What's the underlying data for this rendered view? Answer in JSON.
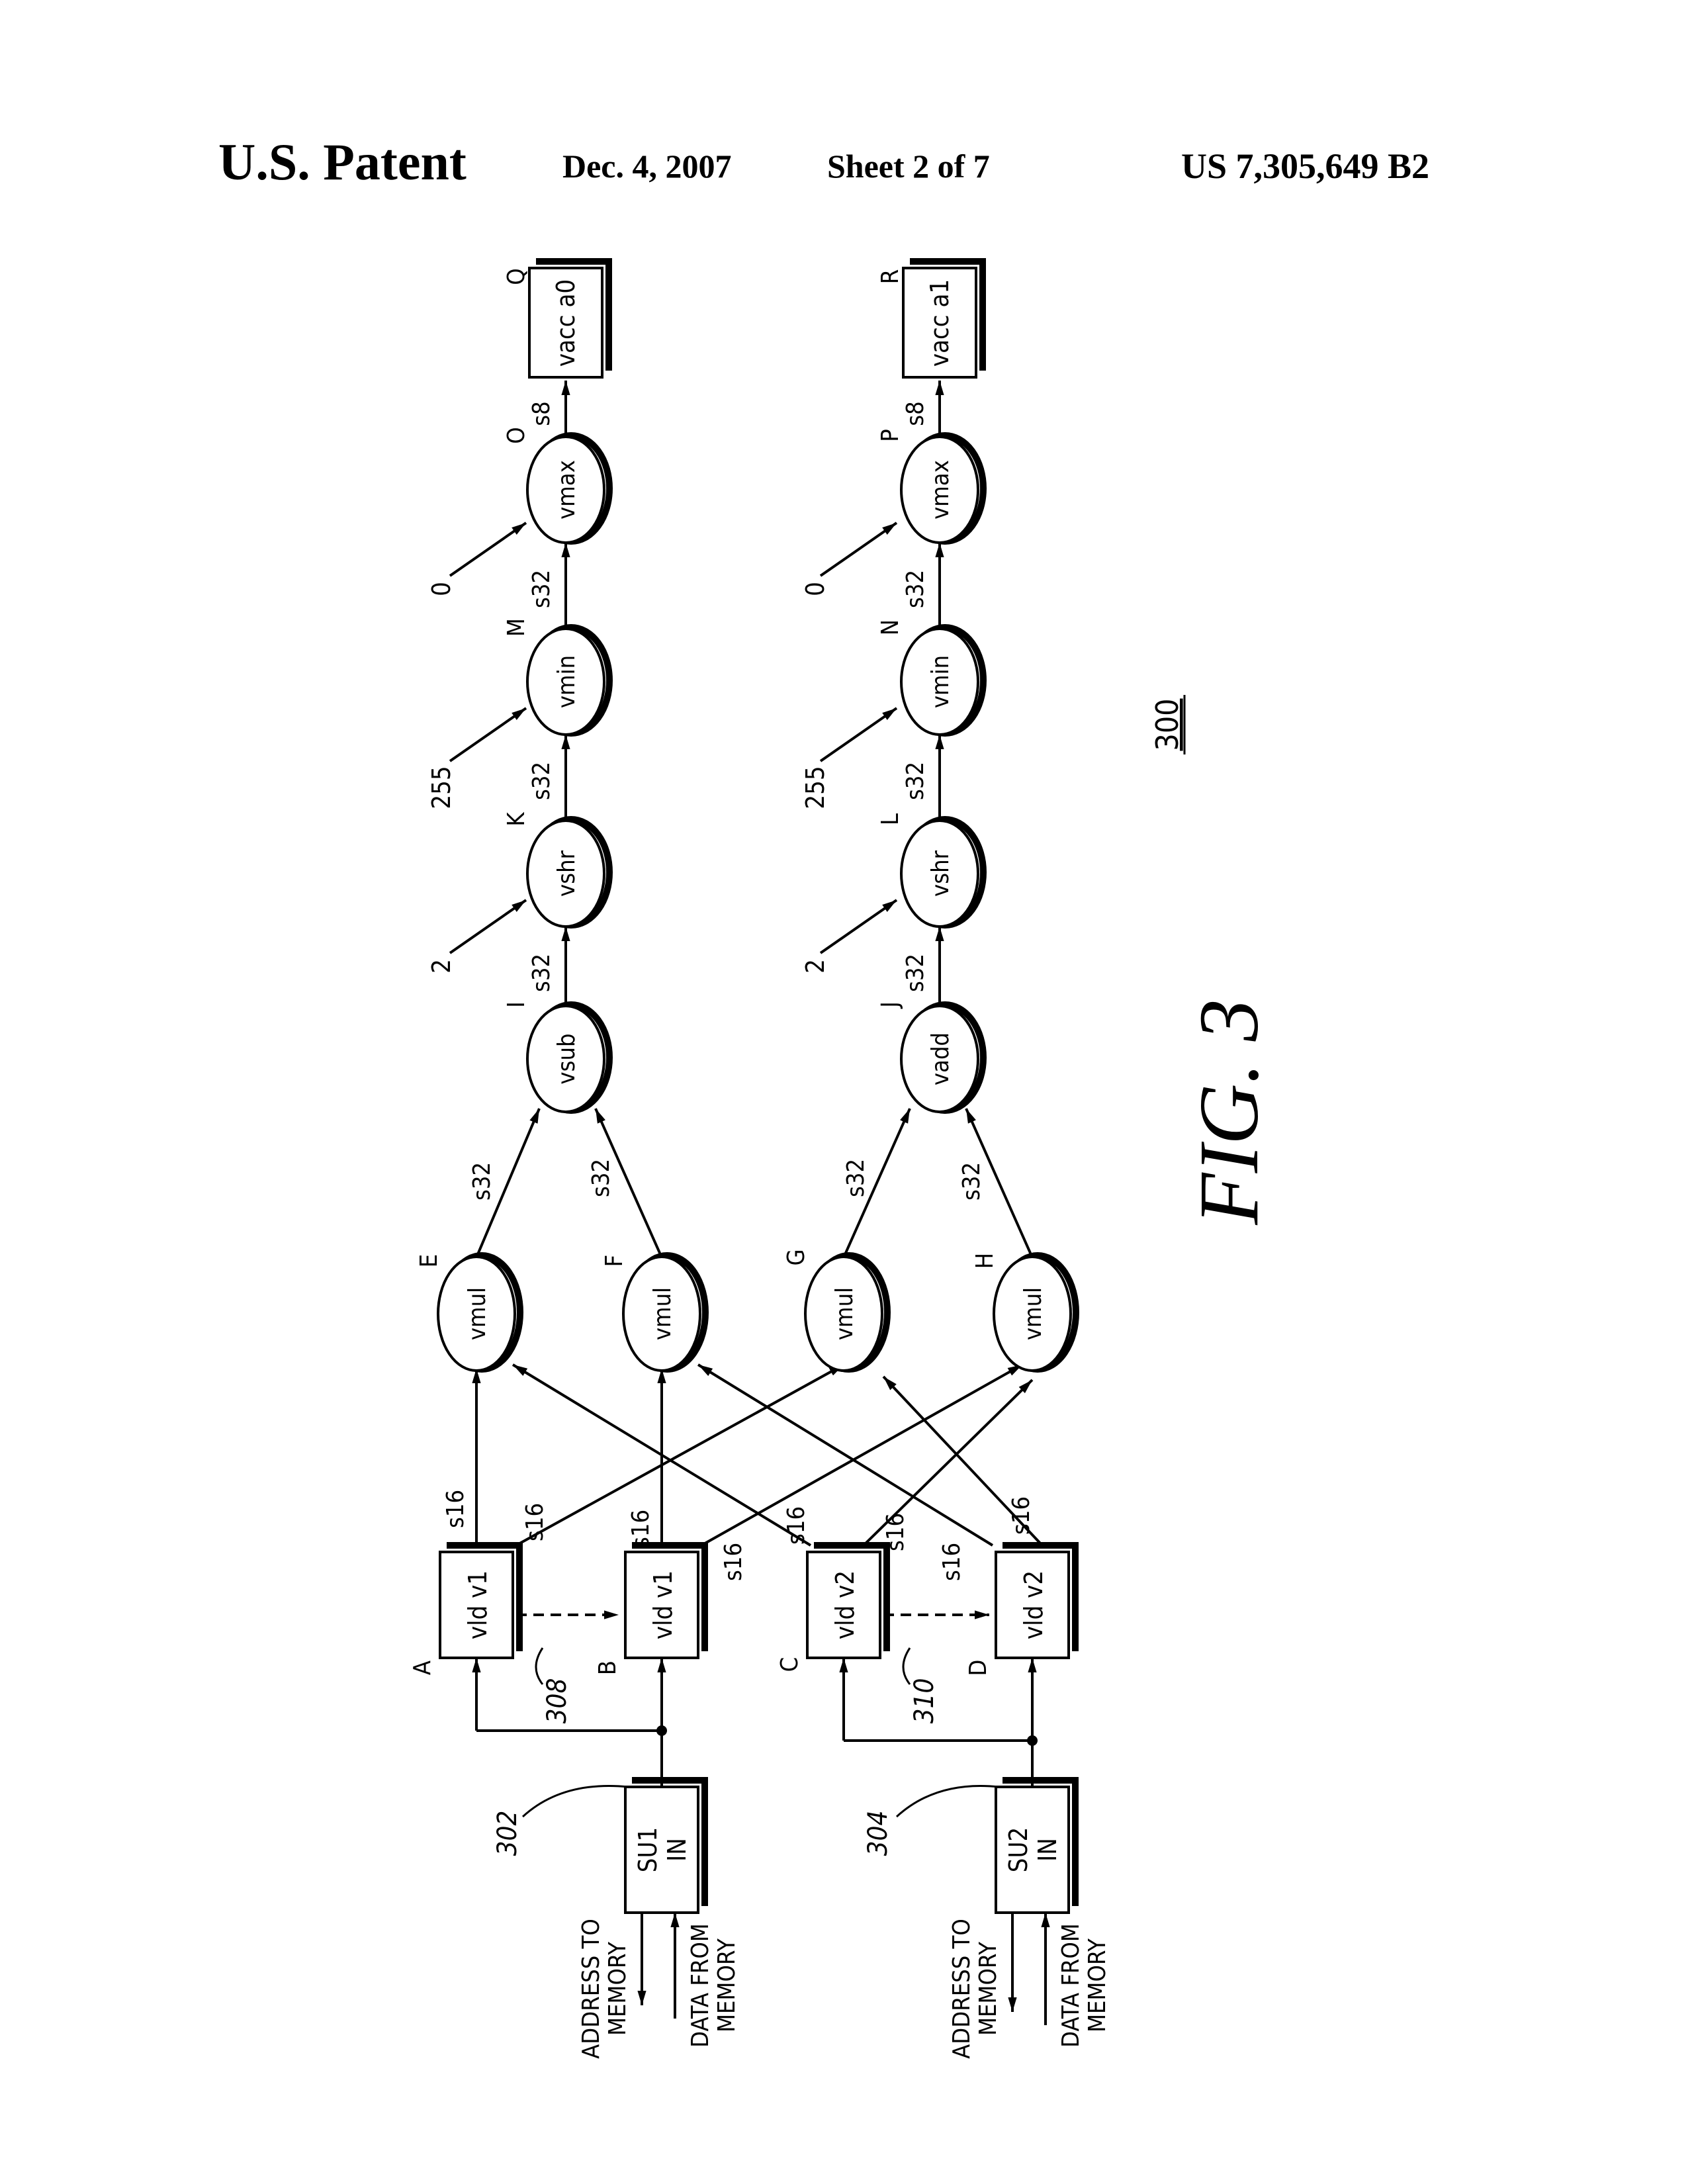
{
  "header": {
    "title": "U.S. Patent",
    "date": "Dec. 4, 2007",
    "sheet": "Sheet 2 of 7",
    "patent_number": "US 7,305,649 B2"
  },
  "figure": {
    "caption": "FIG. 3",
    "ref": "300",
    "stream_units": [
      {
        "id": "su1",
        "label1": "SU1",
        "label2": "IN",
        "ref": "302",
        "addr_text": [
          "ADDRESS TO",
          "MEMORY"
        ],
        "data_text": [
          "DATA FROM",
          "MEMORY"
        ]
      },
      {
        "id": "su2",
        "label1": "SU2",
        "label2": "IN",
        "ref": "304",
        "addr_text": [
          "ADDRESS TO",
          "MEMORY"
        ],
        "data_text": [
          "DATA FROM",
          "MEMORY"
        ]
      }
    ],
    "loads": [
      {
        "letter": "A",
        "text": "vld v1"
      },
      {
        "letter": "B",
        "text": "vld v1"
      },
      {
        "letter": "C",
        "text": "vld v2"
      },
      {
        "letter": "D",
        "text": "vld v2"
      }
    ],
    "load_refs": [
      "308",
      "310"
    ],
    "multipliers": [
      {
        "letter": "E",
        "text": "vmul"
      },
      {
        "letter": "F",
        "text": "vmul"
      },
      {
        "letter": "G",
        "text": "vmul"
      },
      {
        "letter": "H",
        "text": "vmul"
      }
    ],
    "chain_top": [
      {
        "letter": "I",
        "text": "vsub"
      },
      {
        "letter": "K",
        "text": "vshr"
      },
      {
        "letter": "M",
        "text": "vmin"
      },
      {
        "letter": "O",
        "text": "vmax"
      }
    ],
    "chain_bottom": [
      {
        "letter": "J",
        "text": "vadd"
      },
      {
        "letter": "L",
        "text": "vshr"
      },
      {
        "letter": "N",
        "text": "vmin"
      },
      {
        "letter": "P",
        "text": "vmax"
      }
    ],
    "accumulators": [
      {
        "letter": "Q",
        "text": "vacc a0"
      },
      {
        "letter": "R",
        "text": "vacc a1"
      }
    ],
    "constants": [
      "2",
      "255",
      "0"
    ],
    "edge_labels": {
      "s16": "s16",
      "s32": "s32",
      "s8": "s8"
    }
  }
}
